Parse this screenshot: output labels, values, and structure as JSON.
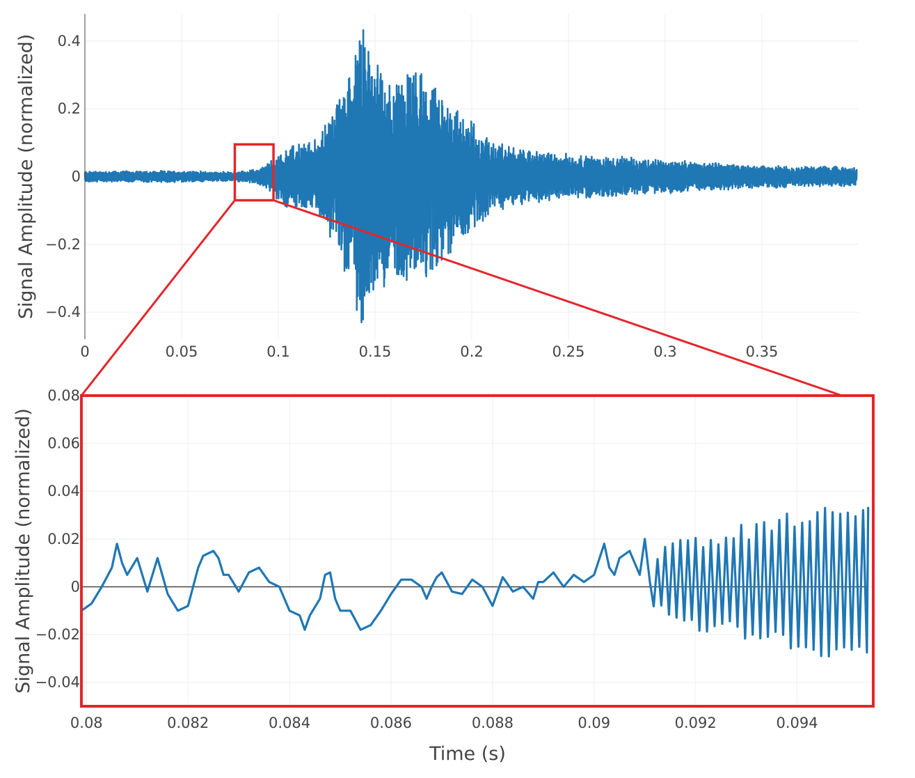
{
  "colors": {
    "trace": "#1f77b4",
    "zoom_box": "#e3262b",
    "grid": "#eeeeee",
    "zero_line": "#444444",
    "tick_text": "#444444"
  },
  "chart_data": [
    {
      "type": "line",
      "panel": "overview",
      "title": "",
      "xlabel": "",
      "ylabel": "Signal Amplitude (normalized)",
      "xlim": [
        0,
        0.4
      ],
      "ylim": [
        -0.48,
        0.48
      ],
      "x_ticks": [
        0,
        0.05,
        0.1,
        0.15,
        0.2,
        0.25,
        0.3,
        0.35
      ],
      "x_tick_labels": [
        "0",
        "0.05",
        "0.1",
        "0.15",
        "0.2",
        "0.25",
        "0.3",
        "0.35"
      ],
      "y_ticks": [
        -0.4,
        -0.2,
        0,
        0.2,
        0.4
      ],
      "y_tick_labels": [
        "−0.4",
        "−0.2",
        "0",
        "0.2",
        "0.4"
      ],
      "grid": true,
      "zoom_region": {
        "x": [
          0.0775,
          0.0975
        ],
        "y": [
          -0.07,
          0.095
        ]
      },
      "series": [
        {
          "t": [
            0,
            0.02,
            0.05,
            0.077,
            0.09,
            0.097,
            0.103,
            0.11,
            0.12,
            0.13,
            0.135,
            0.14,
            0.143,
            0.15,
            0.16,
            0.17,
            0.18,
            0.19,
            0.2,
            0.21,
            0.22,
            0.25,
            0.3,
            0.35,
            0.4
          ],
          "amplitude": [
            0.015,
            0.015,
            0.015,
            0.012,
            0.02,
            0.045,
            0.08,
            0.09,
            0.1,
            0.2,
            0.28,
            0.36,
            0.44,
            0.3,
            0.27,
            0.3,
            0.24,
            0.2,
            0.15,
            0.1,
            0.08,
            0.06,
            0.045,
            0.03,
            0.025
          ]
        }
      ]
    },
    {
      "type": "line",
      "panel": "zoom",
      "title": "",
      "xlabel": "Time (s)",
      "ylabel": "Signal Amplitude (normalized)",
      "xlim": [
        0.0799,
        0.0955
      ],
      "ylim": [
        -0.05,
        0.08
      ],
      "x_ticks": [
        0.08,
        0.082,
        0.084,
        0.086,
        0.088,
        0.09,
        0.092,
        0.094
      ],
      "x_tick_labels": [
        "0.08",
        "0.082",
        "0.084",
        "0.086",
        "0.088",
        "0.09",
        "0.092",
        "0.094"
      ],
      "y_ticks": [
        -0.04,
        -0.02,
        0,
        0.02,
        0.04,
        0.06,
        0.08
      ],
      "y_tick_labels": [
        "−0.04",
        "−0.02",
        "0",
        "0.02",
        "0.04",
        "0.06",
        "0.08"
      ],
      "grid": true,
      "zero_line": true,
      "series": [
        {
          "x": [
            0.0799,
            0.0801,
            0.0803,
            0.0805,
            0.0806,
            0.0807,
            0.0808,
            0.081,
            0.0812,
            0.0814,
            0.0816,
            0.0818,
            0.082,
            0.0821,
            0.0822,
            0.0823,
            0.0825,
            0.0826,
            0.0827,
            0.0828,
            0.083,
            0.0832,
            0.0834,
            0.0836,
            0.0838,
            0.084,
            0.0842,
            0.0843,
            0.0844,
            0.0846,
            0.0847,
            0.0848,
            0.0849,
            0.085,
            0.0852,
            0.0854,
            0.0856,
            0.0858,
            0.086,
            0.0862,
            0.0864,
            0.0866,
            0.0867,
            0.0868,
            0.0869,
            0.087,
            0.0872,
            0.0874,
            0.0876,
            0.0878,
            0.088,
            0.0882,
            0.0884,
            0.0886,
            0.0888,
            0.0889,
            0.089,
            0.0892,
            0.0894,
            0.0896,
            0.0898,
            0.09,
            0.0902,
            0.0903,
            0.0904,
            0.0905,
            0.0907,
            0.0909,
            0.091,
            0.0911
          ],
          "y": [
            -0.01,
            -0.007,
            0.0,
            0.008,
            0.018,
            0.01,
            0.005,
            0.012,
            -0.002,
            0.012,
            -0.003,
            -0.01,
            -0.008,
            0.0,
            0.008,
            0.013,
            0.015,
            0.012,
            0.005,
            0.005,
            -0.002,
            0.006,
            0.008,
            0.002,
            0.0,
            -0.01,
            -0.012,
            -0.018,
            -0.012,
            -0.005,
            0.005,
            0.006,
            -0.005,
            -0.01,
            -0.01,
            -0.018,
            -0.016,
            -0.01,
            -0.003,
            0.003,
            0.003,
            0.0,
            -0.005,
            0.0,
            0.004,
            0.006,
            -0.002,
            -0.003,
            0.003,
            0.0,
            -0.008,
            0.004,
            -0.002,
            0.0,
            -0.005,
            0.002,
            0.002,
            0.006,
            0.0,
            0.005,
            0.002,
            0.005,
            0.018,
            0.008,
            0.005,
            0.012,
            0.015,
            0.005,
            0.02,
            0.002
          ]
        }
      ]
    }
  ]
}
